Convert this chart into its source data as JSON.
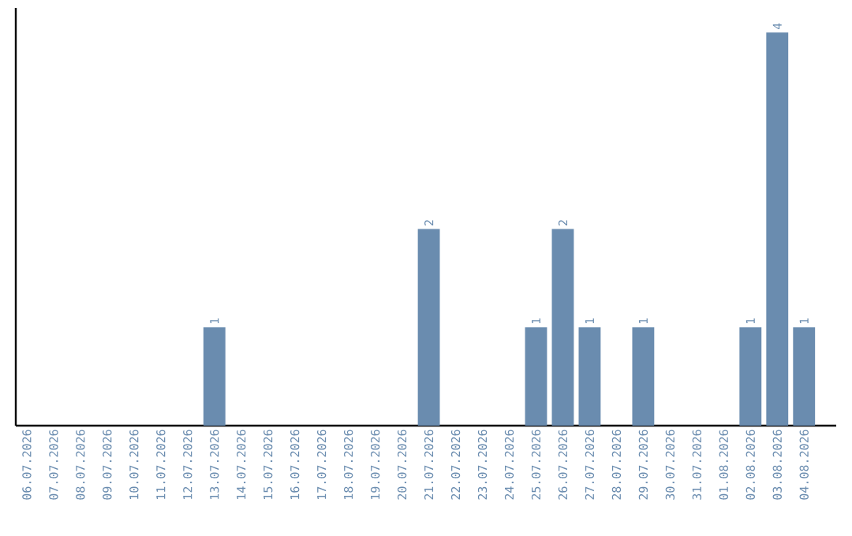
{
  "chart_data": {
    "type": "bar",
    "categories": [
      "06.07.2026",
      "07.07.2026",
      "08.07.2026",
      "09.07.2026",
      "10.07.2026",
      "11.07.2026",
      "12.07.2026",
      "13.07.2026",
      "14.07.2026",
      "15.07.2026",
      "16.07.2026",
      "17.07.2026",
      "18.07.2026",
      "19.07.2026",
      "20.07.2026",
      "21.07.2026",
      "22.07.2026",
      "23.07.2026",
      "24.07.2026",
      "25.07.2026",
      "26.07.2026",
      "27.07.2026",
      "28.07.2026",
      "29.07.2026",
      "30.07.2026",
      "31.07.2026",
      "01.08.2026",
      "02.08.2026",
      "03.08.2026",
      "04.08.2026"
    ],
    "values": [
      0,
      0,
      0,
      0,
      0,
      0,
      0,
      1,
      0,
      0,
      0,
      0,
      0,
      0,
      0,
      2,
      0,
      0,
      0,
      1,
      2,
      1,
      0,
      1,
      0,
      0,
      0,
      1,
      4,
      1
    ],
    "value_labels": [
      null,
      null,
      null,
      null,
      null,
      null,
      null,
      "1",
      null,
      null,
      null,
      null,
      null,
      null,
      null,
      "2",
      null,
      null,
      null,
      "1",
      "2",
      "1",
      null,
      "1",
      null,
      null,
      null,
      "1",
      "4",
      "1"
    ],
    "color": "#6a8caf",
    "ylim": [
      0,
      4.25
    ],
    "tick_labels": "x"
  }
}
